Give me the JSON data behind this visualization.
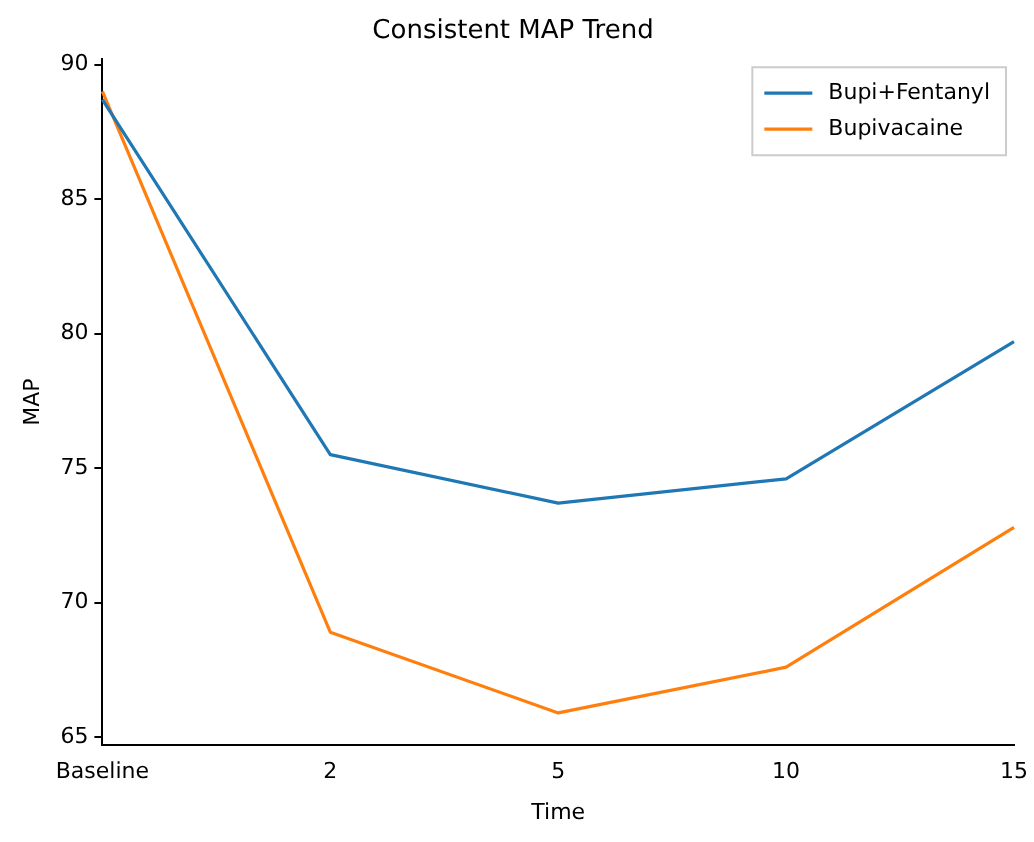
{
  "chart_data": {
    "type": "line",
    "title": "Consistent MAP Trend",
    "xlabel": "Time",
    "ylabel": "MAP",
    "categories": [
      "Baseline",
      "2",
      "5",
      "10",
      "15"
    ],
    "series": [
      {
        "name": "Bupi+Fentanyl",
        "color": "#1f77b4",
        "values": [
          88.7,
          75.5,
          73.7,
          74.6,
          79.7
        ]
      },
      {
        "name": "Bupivacaine",
        "color": "#ff7f0e",
        "values": [
          89.0,
          68.9,
          65.9,
          67.6,
          72.8
        ]
      }
    ],
    "ylim": [
      64.7,
      90.2
    ],
    "yticks": [
      65,
      70,
      75,
      80,
      85,
      90
    ],
    "grid": false,
    "legend": "top right",
    "marker": "none",
    "line_style": "solid"
  }
}
